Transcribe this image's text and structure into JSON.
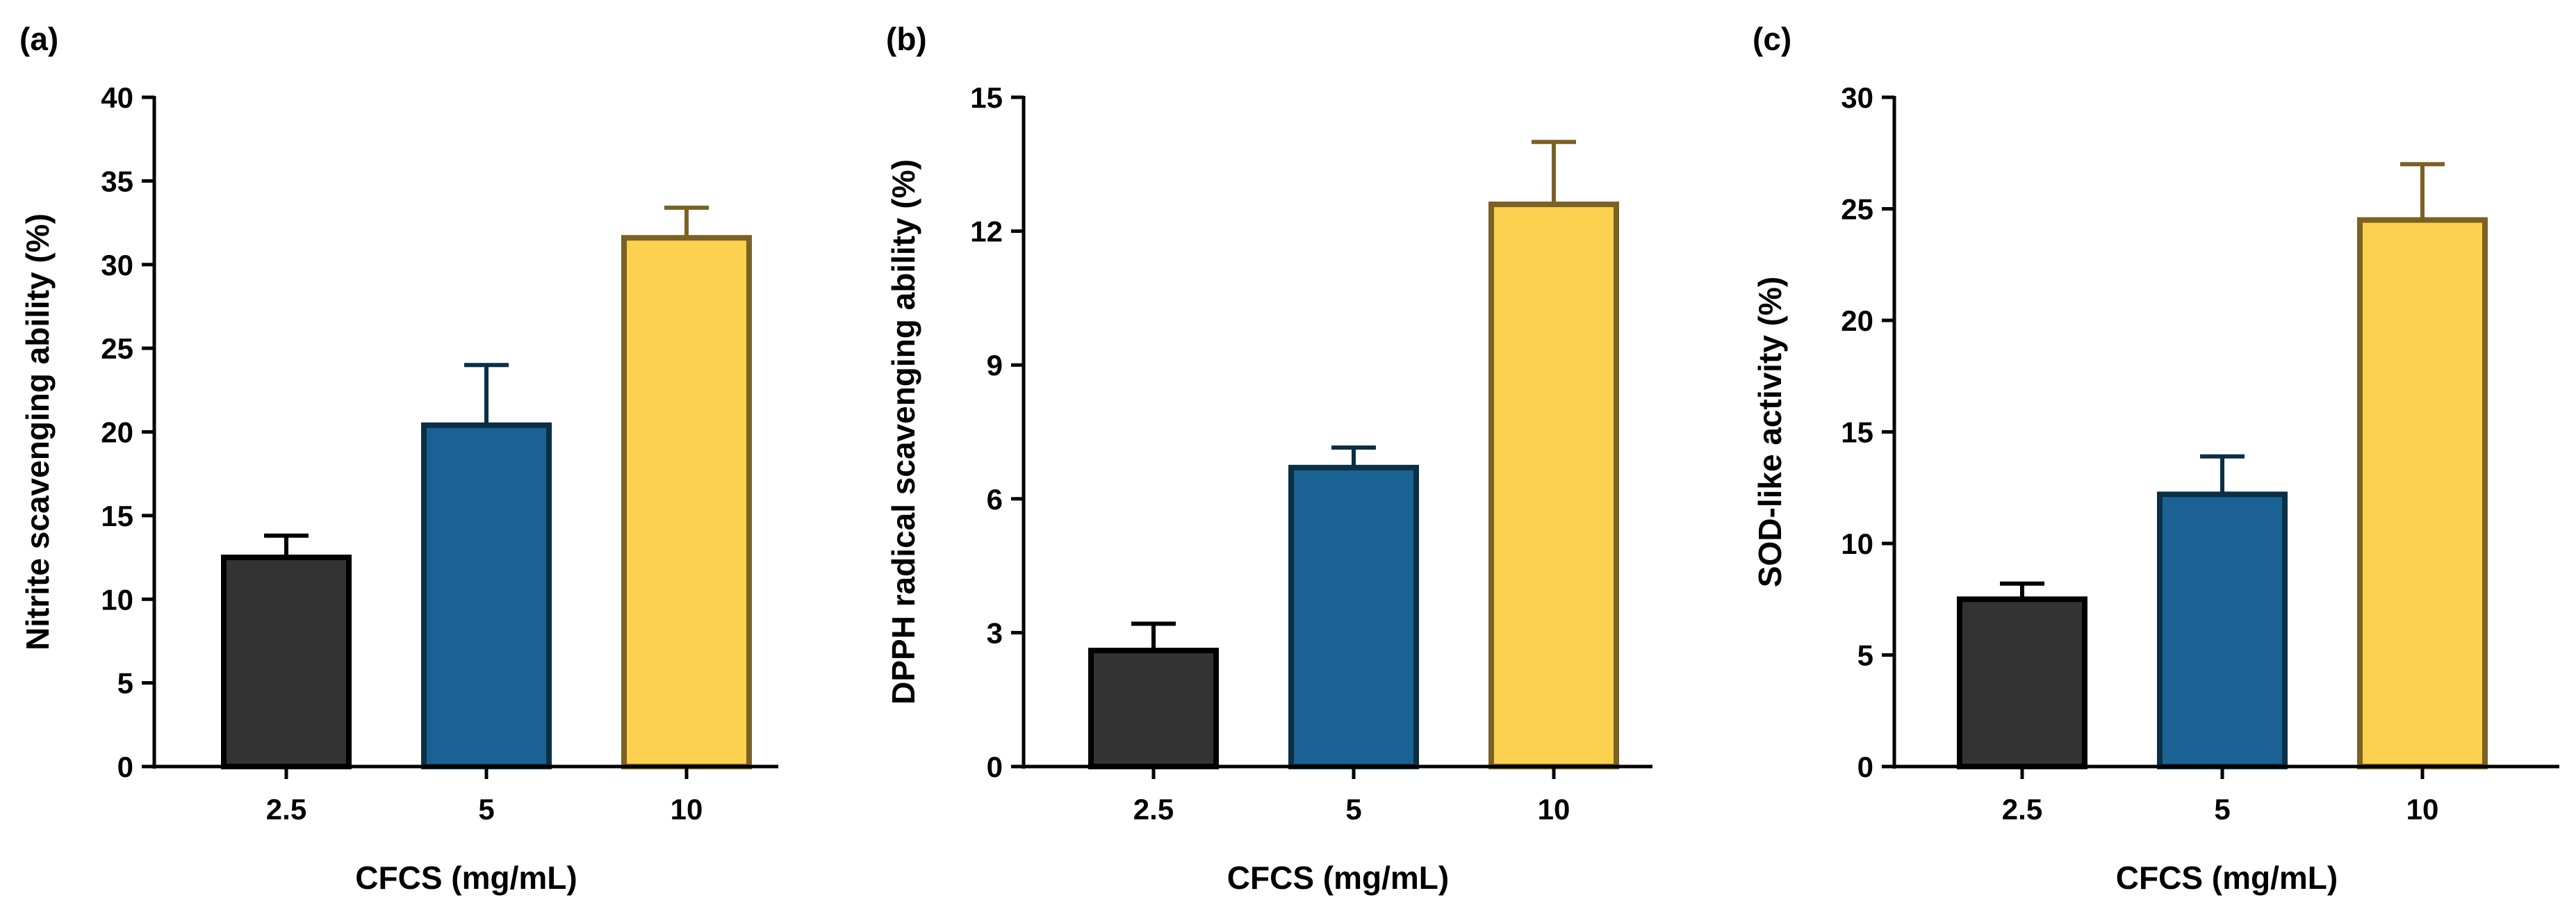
{
  "chart_data": [
    {
      "type": "bar",
      "panel_label": "(a)",
      "categories": [
        "2.5",
        "5",
        "10"
      ],
      "values": [
        12.5,
        20.4,
        31.6
      ],
      "errors": [
        1.3,
        3.6,
        1.8
      ],
      "xlabel": "CFCS (mg/mL)",
      "ylabel": "Nitrite scavenging ability (%)",
      "ylim": [
        0,
        40
      ],
      "yticks": [
        "0",
        "5",
        "10",
        "15",
        "20",
        "25",
        "30",
        "35",
        "40"
      ]
    },
    {
      "type": "bar",
      "panel_label": "(b)",
      "categories": [
        "2.5",
        "5",
        "10"
      ],
      "values": [
        2.6,
        6.7,
        12.6
      ],
      "errors": [
        0.6,
        0.45,
        1.4
      ],
      "xlabel": "CFCS (mg/mL)",
      "ylabel": "DPPH radical scavenging ability (%)",
      "ylim": [
        0,
        15
      ],
      "yticks": [
        "0",
        "3",
        "6",
        "9",
        "12",
        "15"
      ]
    },
    {
      "type": "bar",
      "panel_label": "(c)",
      "categories": [
        "2.5",
        "5",
        "10"
      ],
      "values": [
        7.5,
        12.2,
        24.5
      ],
      "errors": [
        0.7,
        1.7,
        2.5
      ],
      "xlabel": "CFCS (mg/mL)",
      "ylabel": "SOD-like activity  (%)",
      "ylim": [
        0,
        30
      ],
      "yticks": [
        "0",
        "5",
        "10",
        "15",
        "20",
        "25",
        "30"
      ]
    }
  ],
  "colors": {
    "bar_fills": [
      "#333333",
      "#1b6294",
      "#fcd14f"
    ],
    "bar_edges": [
      "#000000",
      "#0b2f45",
      "#7b6125"
    ],
    "axis": "#000000"
  }
}
